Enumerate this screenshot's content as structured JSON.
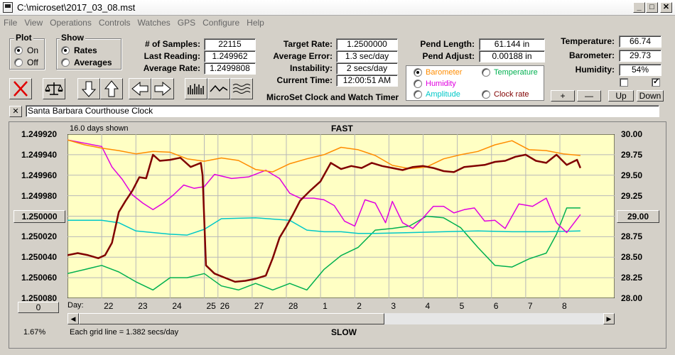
{
  "window": {
    "title": "C:\\microset\\2017_03_08.mst"
  },
  "menu": [
    "File",
    "View",
    "Operations",
    "Controls",
    "Watches",
    "GPS",
    "Configure",
    "Help"
  ],
  "plot_group": {
    "label": "Plot",
    "on": "On",
    "off": "Off",
    "selected": "On"
  },
  "show_group": {
    "label": "Show",
    "rates": "Rates",
    "averages": "Averages",
    "selected": "Rates"
  },
  "stats": {
    "samples_label": "# of Samples:",
    "samples": "22115",
    "last_reading_label": "Last Reading:",
    "last_reading": "1.249962",
    "average_rate_label": "Average Rate:",
    "average_rate": "1.2499808",
    "target_rate_label": "Target Rate:",
    "target_rate": "1.2500000",
    "average_error_label": "Average Error:",
    "average_error": "1.3 sec/day",
    "instability_label": "Instability:",
    "instability": "2 secs/day",
    "current_time_label": "Current Time:",
    "current_time": "12:00:51 AM",
    "pend_length_label": "Pend Length:",
    "pend_length": "61.144 in",
    "pend_adjust_label": "Pend Adjust:",
    "pend_adjust": "0.00188 in",
    "temperature_label": "Temperature:",
    "temperature": "66.74",
    "barometer_label": "Barometer:",
    "barometer": "29.73",
    "humidity_label": "Humidity:",
    "humidity": "54%"
  },
  "app_caption": "MicroSet Clock and Watch Timer",
  "series_select": {
    "barometer": "Barometer",
    "temperature": "Temperature",
    "humidity": "Humidity",
    "amplitude": "Amplitude",
    "clock_rate": "Clock rate",
    "selected": "Barometer",
    "colors": {
      "barometer": "#ff8c00",
      "temperature": "#00b050",
      "humidity": "#e000e0",
      "amplitude": "#00c8c8",
      "clock_rate": "#800000"
    }
  },
  "right_buttons": {
    "plus": "+",
    "minus": "—",
    "up": "Up",
    "down": "Down"
  },
  "note": {
    "close": "✕",
    "text": "Santa Barbara Courthouse Clock"
  },
  "chart_data": {
    "type": "line",
    "header_left": "16.0 days shown",
    "top_label": "FAST",
    "bottom_label": "SLOW",
    "grid_note": "Each grid line = 1.382 secs/day",
    "percent": "1.67%",
    "x_label": "Day:",
    "left_button": "1.250000",
    "right_button": "29.00",
    "zero_button": "0",
    "left_axis": [
      "1.249920",
      "1.249940",
      "1.249960",
      "1.249980",
      "1.250000",
      "1.250020",
      "1.250040",
      "1.250060",
      "1.250080"
    ],
    "right_axis": [
      "30.00",
      "29.75",
      "29.50",
      "29.25",
      "29.00",
      "28.75",
      "28.50",
      "28.25",
      "28.00"
    ],
    "left_ylim": [
      1.24992,
      1.25008
    ],
    "right_ylim": [
      28.0,
      30.0
    ],
    "xlim": [
      0,
      16
    ],
    "days": [
      {
        "label": "22",
        "x": 1.0
      },
      {
        "label": "23",
        "x": 2.0
      },
      {
        "label": "24",
        "x": 3.0
      },
      {
        "label": "25",
        "x": 4.0
      },
      {
        "label": "26",
        "x": 4.4
      },
      {
        "label": "27",
        "x": 5.4
      },
      {
        "label": "28",
        "x": 6.4
      },
      {
        "label": "1",
        "x": 7.4
      },
      {
        "label": "2",
        "x": 8.4
      },
      {
        "label": "3",
        "x": 9.4
      },
      {
        "label": "4",
        "x": 10.4
      },
      {
        "label": "5",
        "x": 11.4
      },
      {
        "label": "6",
        "x": 12.4
      },
      {
        "label": "7",
        "x": 13.4
      },
      {
        "label": "8",
        "x": 14.4
      }
    ],
    "series": [
      {
        "name": "Clock rate",
        "axis": "left",
        "color": "#800000",
        "x": [
          0,
          0.3,
          0.6,
          0.9,
          1.1,
          1.3,
          1.5,
          1.7,
          1.9,
          2.1,
          2.3,
          2.5,
          2.7,
          3.0,
          3.3,
          3.6,
          3.9,
          3.95,
          4.05,
          4.3,
          4.6,
          4.9,
          5.2,
          5.5,
          5.8,
          6.0,
          6.2,
          6.4,
          6.6,
          6.8,
          7.1,
          7.4,
          7.7,
          8.0,
          8.3,
          8.6,
          8.9,
          9.2,
          9.5,
          9.8,
          10.1,
          10.4,
          10.7,
          11.0,
          11.3,
          11.6,
          11.9,
          12.2,
          12.5,
          12.8,
          13.1,
          13.4,
          13.7,
          14.0,
          14.3,
          14.6,
          14.9,
          15.0
        ],
        "y": [
          1.250038,
          1.250036,
          1.250038,
          1.250041,
          1.250038,
          1.250026,
          1.249996,
          1.249985,
          1.249975,
          1.249962,
          1.249963,
          1.24994,
          1.249946,
          1.249945,
          1.249943,
          1.249952,
          1.249948,
          1.24996,
          1.250048,
          1.250056,
          1.25006,
          1.250064,
          1.250063,
          1.250061,
          1.250058,
          1.250041,
          1.250021,
          1.25001,
          1.249998,
          1.249985,
          1.249975,
          1.249966,
          1.249948,
          1.249954,
          1.249951,
          1.249953,
          1.249948,
          1.249951,
          1.249953,
          1.249955,
          1.249952,
          1.249951,
          1.249953,
          1.249956,
          1.249957,
          1.249952,
          1.249951,
          1.24995,
          1.249947,
          1.249946,
          1.249942,
          1.24994,
          1.249946,
          1.249948,
          1.24994,
          1.24995,
          1.249945,
          1.249953
        ]
      },
      {
        "name": "Barometer",
        "axis": "right",
        "color": "#ff8c00",
        "x": [
          0,
          0.5,
          1.0,
          1.5,
          2.0,
          2.5,
          3.0,
          3.5,
          4.0,
          4.5,
          5.0,
          5.5,
          6.0,
          6.5,
          7.0,
          7.5,
          8.0,
          8.5,
          9.0,
          9.5,
          10.0,
          10.5,
          11.0,
          11.5,
          12.0,
          12.5,
          13.0,
          13.5,
          14.0,
          14.5,
          15.0
        ],
        "y": [
          29.93,
          29.87,
          29.83,
          29.8,
          29.76,
          29.79,
          29.78,
          29.7,
          29.67,
          29.71,
          29.68,
          29.57,
          29.54,
          29.64,
          29.7,
          29.75,
          29.84,
          29.81,
          29.74,
          29.62,
          29.58,
          29.6,
          29.7,
          29.75,
          29.79,
          29.87,
          29.92,
          29.81,
          29.8,
          29.76,
          29.74
        ]
      },
      {
        "name": "Humidity",
        "axis": "right",
        "color": "#e000e0",
        "x": [
          0,
          0.5,
          1.0,
          1.3,
          1.6,
          1.9,
          2.2,
          2.5,
          2.8,
          3.1,
          3.4,
          3.7,
          4.0,
          4.3,
          4.8,
          5.3,
          5.8,
          6.2,
          6.5,
          6.8,
          7.2,
          7.5,
          7.8,
          8.1,
          8.4,
          8.7,
          9.0,
          9.3,
          9.5,
          9.8,
          10.1,
          10.4,
          10.7,
          11.0,
          11.3,
          11.6,
          11.9,
          12.2,
          12.5,
          12.8,
          13.2,
          13.6,
          14.0,
          14.3,
          14.6,
          15.0
        ],
        "y": [
          29.93,
          29.89,
          29.85,
          29.6,
          29.45,
          29.26,
          29.16,
          29.08,
          29.16,
          29.26,
          29.38,
          29.34,
          29.36,
          29.51,
          29.46,
          29.48,
          29.56,
          29.46,
          29.28,
          29.22,
          29.22,
          29.2,
          29.13,
          28.94,
          28.88,
          29.2,
          29.16,
          28.92,
          29.18,
          28.92,
          28.85,
          28.98,
          29.12,
          29.12,
          29.04,
          29.08,
          29.1,
          28.94,
          28.95,
          28.85,
          29.15,
          29.12,
          29.22,
          28.92,
          28.8,
          29.02
        ]
      },
      {
        "name": "Amplitude",
        "axis": "right",
        "color": "#00c8c8",
        "x": [
          0,
          1.0,
          1.5,
          2.0,
          3.0,
          3.5,
          4.0,
          4.5,
          5.5,
          6.5,
          7.0,
          7.5,
          8.0,
          8.5,
          9.0,
          10.0,
          11.0,
          12.0,
          13.0,
          14.0,
          15.0
        ],
        "y": [
          28.95,
          28.95,
          28.92,
          28.82,
          28.78,
          28.77,
          28.84,
          28.97,
          28.98,
          28.95,
          28.83,
          28.81,
          28.81,
          28.79,
          28.79,
          28.8,
          28.81,
          28.82,
          28.81,
          28.81,
          28.82
        ]
      },
      {
        "name": "Temperature",
        "axis": "right",
        "color": "#00b050",
        "x": [
          0,
          0.5,
          1.0,
          1.5,
          2.0,
          2.5,
          3.0,
          3.5,
          4.0,
          4.5,
          5.0,
          5.5,
          6.0,
          6.5,
          7.0,
          7.5,
          8.0,
          8.5,
          9.0,
          9.5,
          10.0,
          10.5,
          11.0,
          11.5,
          12.0,
          12.5,
          13.0,
          13.5,
          14.0,
          14.3,
          14.6,
          15.0
        ],
        "y": [
          28.3,
          28.35,
          28.4,
          28.32,
          28.2,
          28.1,
          28.25,
          28.25,
          28.3,
          28.15,
          28.1,
          28.18,
          28.1,
          28.18,
          28.1,
          28.35,
          28.52,
          28.62,
          28.83,
          28.85,
          28.88,
          29.0,
          28.98,
          28.86,
          28.62,
          28.4,
          28.38,
          28.48,
          28.55,
          28.78,
          29.1,
          29.1
        ]
      }
    ]
  }
}
